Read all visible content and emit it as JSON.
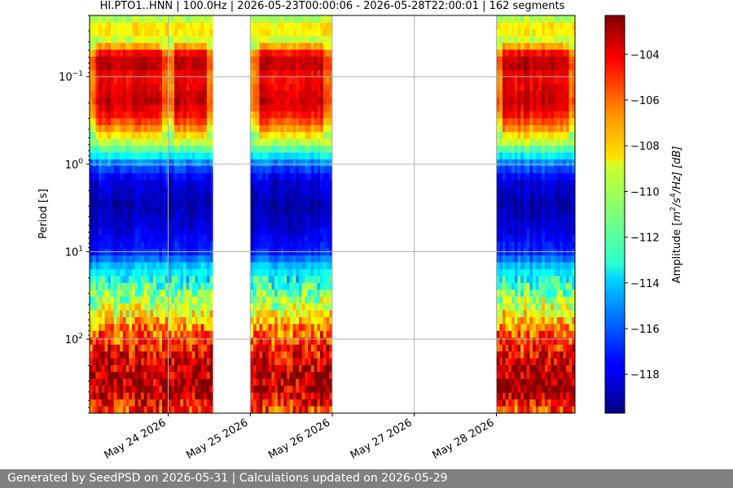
{
  "chart_data": {
    "type": "heatmap",
    "title": "HI.PTO1..HNN | 100.0Hz | 2026-05-23T00:00:06 - 2026-05-28T22:00:01 | 162 segments",
    "ylabel": "Period [s]",
    "yscale": "log",
    "yaxis_inverted": true,
    "ylim": [
      0.02,
      700
    ],
    "xlim": [
      "2026-05-23T01:00",
      "2026-05-28T23:00"
    ],
    "yticks": [
      {
        "value": 0.1,
        "base": "10",
        "exp": "−1"
      },
      {
        "value": 1,
        "base": "10",
        "exp": "0"
      },
      {
        "value": 10,
        "base": "10",
        "exp": "1"
      },
      {
        "value": 100,
        "base": "10",
        "exp": "2"
      }
    ],
    "xticks": [
      {
        "value": "2026-05-24",
        "label": "May 24 2026"
      },
      {
        "value": "2026-05-25",
        "label": "May 25 2026"
      },
      {
        "value": "2026-05-26",
        "label": "May 26 2026"
      },
      {
        "value": "2026-05-27",
        "label": "May 27 2026"
      },
      {
        "value": "2026-05-28",
        "label": "May 28 2026"
      }
    ],
    "grid": true,
    "data_segments": [
      {
        "start": "2026-05-23T01:00",
        "end": "2026-05-23T23:59"
      },
      {
        "start": "2026-05-24T00:05",
        "end": "2026-05-24T13:00"
      },
      {
        "start": "2026-05-25T00:00",
        "end": "2026-05-25T23:59"
      },
      {
        "start": "2026-05-28T00:00",
        "end": "2026-05-28T23:00"
      }
    ],
    "colorbar": {
      "label": "Amplitude [m²/s⁴/Hz] [dB]",
      "label_parts": {
        "pre": "Amplitude [",
        "m": "m",
        "e1": "2",
        "mid": "/s",
        "e2": "4",
        "post": "/Hz] [dB]"
      },
      "min": -119.7,
      "max": -102.3,
      "ticks": [
        -104,
        -106,
        -108,
        -110,
        -112,
        -114,
        -116,
        -118
      ],
      "tick_labels": [
        "−104",
        "−106",
        "−108",
        "−110",
        "−112",
        "−114",
        "−116",
        "−118"
      ],
      "colormap": "jet"
    },
    "psd_profile": [
      {
        "period": 0.02,
        "db": -111
      },
      {
        "period": 0.028,
        "db": -108
      },
      {
        "period": 0.04,
        "db": -110
      },
      {
        "period": 0.05,
        "db": -105
      },
      {
        "period": 0.07,
        "db": -103
      },
      {
        "period": 0.1,
        "db": -104.5
      },
      {
        "period": 0.14,
        "db": -104
      },
      {
        "period": 0.2,
        "db": -103.5
      },
      {
        "period": 0.3,
        "db": -105
      },
      {
        "period": 0.45,
        "db": -108
      },
      {
        "period": 0.7,
        "db": -112
      },
      {
        "period": 1,
        "db": -115.5
      },
      {
        "period": 1.5,
        "db": -118
      },
      {
        "period": 3,
        "db": -119
      },
      {
        "period": 6,
        "db": -118
      },
      {
        "period": 10,
        "db": -117
      },
      {
        "period": 15,
        "db": -114
      },
      {
        "period": 25,
        "db": -112
      },
      {
        "period": 40,
        "db": -110
      },
      {
        "period": 70,
        "db": -107
      },
      {
        "period": 120,
        "db": -105
      },
      {
        "period": 200,
        "db": -103.5
      },
      {
        "period": 400,
        "db": -103
      },
      {
        "period": 700,
        "db": -106
      }
    ]
  },
  "footer": {
    "text": "Generated by SeedPSD on 2026-05-31 | Calculations updated on 2026-05-29"
  }
}
